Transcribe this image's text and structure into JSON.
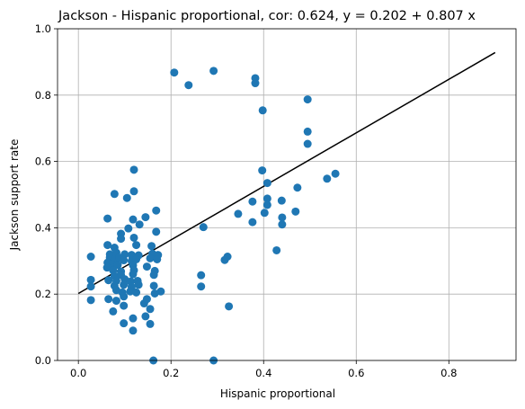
{
  "chart_data": {
    "type": "scatter",
    "title": "Jackson - Hispanic proportional, cor: 0.624, y = 0.202 + 0.807 x",
    "xlabel": "Hispanic proportional",
    "ylabel": "Jackson support rate",
    "xlim": [
      -0.045,
      0.945
    ],
    "ylim": [
      0,
      1
    ],
    "xticks": [
      0.0,
      0.2,
      0.4,
      0.6,
      0.8
    ],
    "xtick_labels": [
      "0.0",
      "0.2",
      "0.4",
      "0.6",
      "0.8"
    ],
    "yticks": [
      0.0,
      0.2,
      0.4,
      0.6,
      0.8,
      1.0
    ],
    "ytick_labels": [
      "0.0",
      "0.2",
      "0.4",
      "0.6",
      "0.8",
      "1.0"
    ],
    "grid": true,
    "colors": {
      "points": "#1f77b4",
      "fit_line": "#000000",
      "grid": "#b0b0b0"
    },
    "fit_line": {
      "intercept": 0.202,
      "slope": 0.807,
      "x": [
        0.0,
        0.9
      ]
    },
    "points": [
      [
        0.207,
        0.868
      ],
      [
        0.292,
        0.873
      ],
      [
        0.238,
        0.83
      ],
      [
        0.382,
        0.851
      ],
      [
        0.382,
        0.836
      ],
      [
        0.398,
        0.754
      ],
      [
        0.495,
        0.787
      ],
      [
        0.495,
        0.69
      ],
      [
        0.495,
        0.653
      ],
      [
        0.397,
        0.573
      ],
      [
        0.408,
        0.535
      ],
      [
        0.555,
        0.563
      ],
      [
        0.537,
        0.548
      ],
      [
        0.473,
        0.521
      ],
      [
        0.408,
        0.488
      ],
      [
        0.439,
        0.482
      ],
      [
        0.408,
        0.469
      ],
      [
        0.376,
        0.479
      ],
      [
        0.345,
        0.442
      ],
      [
        0.402,
        0.445
      ],
      [
        0.469,
        0.449
      ],
      [
        0.44,
        0.431
      ],
      [
        0.376,
        0.417
      ],
      [
        0.44,
        0.41
      ],
      [
        0.428,
        0.332
      ],
      [
        0.27,
        0.402
      ],
      [
        0.322,
        0.313
      ],
      [
        0.316,
        0.303
      ],
      [
        0.265,
        0.257
      ],
      [
        0.265,
        0.223
      ],
      [
        0.325,
        0.163
      ],
      [
        0.292,
        0.0
      ],
      [
        0.162,
        0.0
      ],
      [
        0.12,
        0.575
      ],
      [
        0.12,
        0.51
      ],
      [
        0.078,
        0.502
      ],
      [
        0.105,
        0.49
      ],
      [
        0.168,
        0.452
      ],
      [
        0.145,
        0.432
      ],
      [
        0.118,
        0.425
      ],
      [
        0.063,
        0.428
      ],
      [
        0.132,
        0.41
      ],
      [
        0.108,
        0.398
      ],
      [
        0.168,
        0.388
      ],
      [
        0.092,
        0.382
      ],
      [
        0.12,
        0.37
      ],
      [
        0.092,
        0.367
      ],
      [
        0.063,
        0.348
      ],
      [
        0.078,
        0.34
      ],
      [
        0.158,
        0.345
      ],
      [
        0.125,
        0.348
      ],
      [
        0.068,
        0.32
      ],
      [
        0.082,
        0.325
      ],
      [
        0.1,
        0.32
      ],
      [
        0.115,
        0.318
      ],
      [
        0.13,
        0.317
      ],
      [
        0.16,
        0.322
      ],
      [
        0.172,
        0.318
      ],
      [
        0.068,
        0.31
      ],
      [
        0.078,
        0.305
      ],
      [
        0.088,
        0.31
      ],
      [
        0.098,
        0.302
      ],
      [
        0.115,
        0.3
      ],
      [
        0.125,
        0.305
      ],
      [
        0.155,
        0.308
      ],
      [
        0.17,
        0.305
      ],
      [
        0.063,
        0.295
      ],
      [
        0.072,
        0.29
      ],
      [
        0.085,
        0.288
      ],
      [
        0.118,
        0.287
      ],
      [
        0.148,
        0.283
      ],
      [
        0.062,
        0.28
      ],
      [
        0.075,
        0.272
      ],
      [
        0.092,
        0.268
      ],
      [
        0.12,
        0.272
      ],
      [
        0.165,
        0.27
      ],
      [
        0.078,
        0.255
      ],
      [
        0.092,
        0.258
      ],
      [
        0.118,
        0.26
      ],
      [
        0.163,
        0.258
      ],
      [
        0.065,
        0.242
      ],
      [
        0.082,
        0.24
      ],
      [
        0.1,
        0.245
      ],
      [
        0.113,
        0.238
      ],
      [
        0.128,
        0.24
      ],
      [
        0.078,
        0.225
      ],
      [
        0.098,
        0.228
      ],
      [
        0.115,
        0.222
      ],
      [
        0.13,
        0.228
      ],
      [
        0.163,
        0.225
      ],
      [
        0.082,
        0.212
      ],
      [
        0.095,
        0.205
      ],
      [
        0.112,
        0.208
      ],
      [
        0.125,
        0.205
      ],
      [
        0.178,
        0.208
      ],
      [
        0.165,
        0.202
      ],
      [
        0.098,
        0.193
      ],
      [
        0.065,
        0.185
      ],
      [
        0.082,
        0.18
      ],
      [
        0.142,
        0.172
      ],
      [
        0.075,
        0.148
      ],
      [
        0.098,
        0.165
      ],
      [
        0.155,
        0.155
      ],
      [
        0.118,
        0.127
      ],
      [
        0.145,
        0.133
      ],
      [
        0.098,
        0.112
      ],
      [
        0.155,
        0.11
      ],
      [
        0.118,
        0.09
      ],
      [
        0.027,
        0.313
      ],
      [
        0.027,
        0.243
      ],
      [
        0.027,
        0.223
      ],
      [
        0.027,
        0.182
      ],
      [
        0.148,
        0.185
      ]
    ]
  }
}
